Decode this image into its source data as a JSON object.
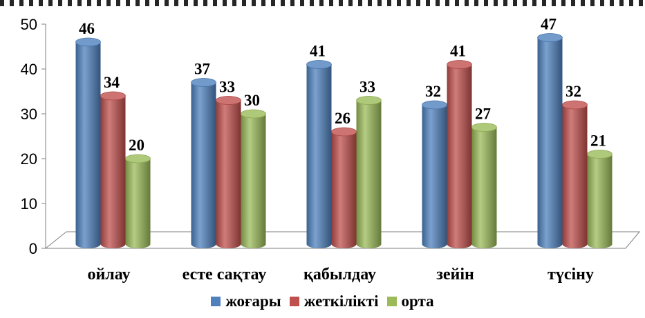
{
  "chart_data": {
    "type": "bar",
    "categories": [
      "ойлау",
      "есте сақтау",
      "қабылдау",
      "зейін",
      "түсіну"
    ],
    "series": [
      {
        "name": "жоғары",
        "values": [
          46,
          37,
          41,
          32,
          47
        ],
        "color": "#4F81BD"
      },
      {
        "name": "жеткілікті",
        "values": [
          34,
          33,
          26,
          41,
          32
        ],
        "color": "#C0504D"
      },
      {
        "name": "орта",
        "values": [
          20,
          30,
          33,
          27,
          21
        ],
        "color": "#9BBB59"
      }
    ],
    "yticks": [
      0,
      10,
      20,
      30,
      40,
      50
    ],
    "ylim": [
      0,
      50
    ],
    "legend_position": "bottom",
    "style": "3d-cylinder"
  }
}
